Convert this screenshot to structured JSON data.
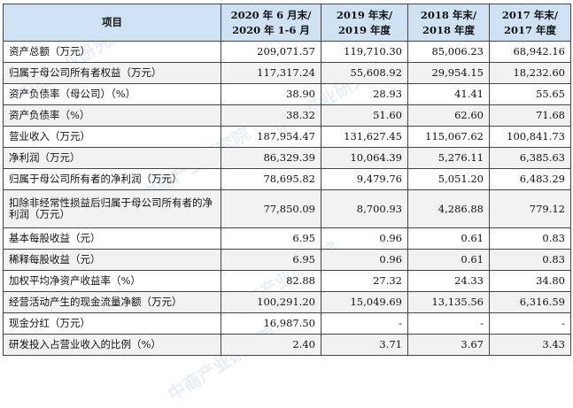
{
  "columns": [
    "项目",
    "2020 年 6 月末/\n2020 年 1-6 月",
    "2019 年末/\n2019 年度",
    "2018 年末/\n2018 年度",
    "2017 年末/\n2017 年度"
  ],
  "rows": [
    {
      "label": "资产总额（万元）",
      "values": [
        "209,071.57",
        "119,710.30",
        "85,006.23",
        "68,942.16"
      ]
    },
    {
      "label": "归属于母公司所有者权益（万元）",
      "values": [
        "117,317.24",
        "55,608.92",
        "29,954.15",
        "18,232.60"
      ]
    },
    {
      "label": "资产负债率（母公司）（%）",
      "values": [
        "38.90",
        "28.93",
        "41.41",
        "55.65"
      ]
    },
    {
      "label": "资产负债率（%）",
      "values": [
        "38.32",
        "51.60",
        "62.60",
        "71.68"
      ]
    },
    {
      "label": "营业收入（万元）",
      "values": [
        "187,954.47",
        "131,627.45",
        "115,067.62",
        "100,841.73"
      ]
    },
    {
      "label": "净利润（万元）",
      "values": [
        "86,329.39",
        "10,064.39",
        "5,276.11",
        "6,385.63"
      ]
    },
    {
      "label": "归属于母公司所有者的净利润（万元）",
      "values": [
        "78,695.82",
        "9,479.76",
        "5,051.20",
        "6,483.29"
      ]
    },
    {
      "label": "扣除非经常性损益后归属于母公司所有者的净利润（万元）",
      "values": [
        "77,850.09",
        "8,700.93",
        "4,286.88",
        "779.12"
      ]
    },
    {
      "label": "基本每股收益（元）",
      "values": [
        "6.95",
        "0.96",
        "0.61",
        "0.83"
      ]
    },
    {
      "label": "稀释每股收益（元）",
      "values": [
        "6.95",
        "0.96",
        "0.61",
        "0.83"
      ]
    },
    {
      "label": "加权平均净资产收益率（%）",
      "values": [
        "82.88",
        "27.32",
        "24.33",
        "34.80"
      ]
    },
    {
      "label": "经营活动产生的现金流量净额（万元）",
      "values": [
        "100,291.20",
        "15,049.69",
        "13,135.56",
        "6,316.59"
      ]
    },
    {
      "label": "现金分红（万元）",
      "values": [
        "16,987.50",
        "-",
        "-",
        "-"
      ]
    },
    {
      "label": "研发投入占营业收入的比例（%）",
      "values": [
        "2.40",
        "3.71",
        "3.67",
        "3.43"
      ]
    }
  ],
  "watermark": "中商产业研究院"
}
